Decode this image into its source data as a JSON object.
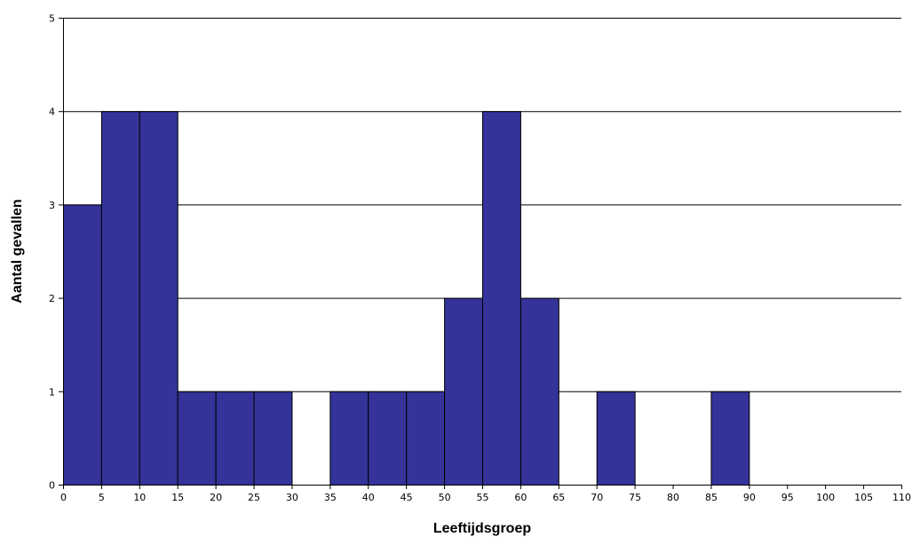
{
  "chart_data": {
    "type": "bar",
    "title": "",
    "xlabel": "Leeftijdsgroep",
    "ylabel": "Aantal gevallen",
    "xlim": [
      0,
      110
    ],
    "ylim": [
      0,
      5
    ],
    "bin_width": 5,
    "x_ticks": [
      "0",
      "5",
      "10",
      "15",
      "20",
      "25",
      "30",
      "35",
      "40",
      "45",
      "50",
      "55",
      "60",
      "65",
      "70",
      "75",
      "80",
      "85",
      "90",
      "95",
      "100",
      "105",
      "110"
    ],
    "y_ticks": [
      "0",
      "1",
      "2",
      "3",
      "4",
      "5"
    ],
    "grid": "horizontal",
    "bar_color": "#333399",
    "bins": [
      {
        "start": 0,
        "value": 3
      },
      {
        "start": 5,
        "value": 4
      },
      {
        "start": 10,
        "value": 4
      },
      {
        "start": 15,
        "value": 1
      },
      {
        "start": 20,
        "value": 1
      },
      {
        "start": 25,
        "value": 1
      },
      {
        "start": 30,
        "value": 0
      },
      {
        "start": 35,
        "value": 1
      },
      {
        "start": 40,
        "value": 1
      },
      {
        "start": 45,
        "value": 1
      },
      {
        "start": 50,
        "value": 2
      },
      {
        "start": 55,
        "value": 4
      },
      {
        "start": 60,
        "value": 2
      },
      {
        "start": 65,
        "value": 0
      },
      {
        "start": 70,
        "value": 1
      },
      {
        "start": 75,
        "value": 0
      },
      {
        "start": 80,
        "value": 0
      },
      {
        "start": 85,
        "value": 1
      },
      {
        "start": 90,
        "value": 0
      },
      {
        "start": 95,
        "value": 0
      },
      {
        "start": 100,
        "value": 0
      },
      {
        "start": 105,
        "value": 0
      }
    ]
  }
}
